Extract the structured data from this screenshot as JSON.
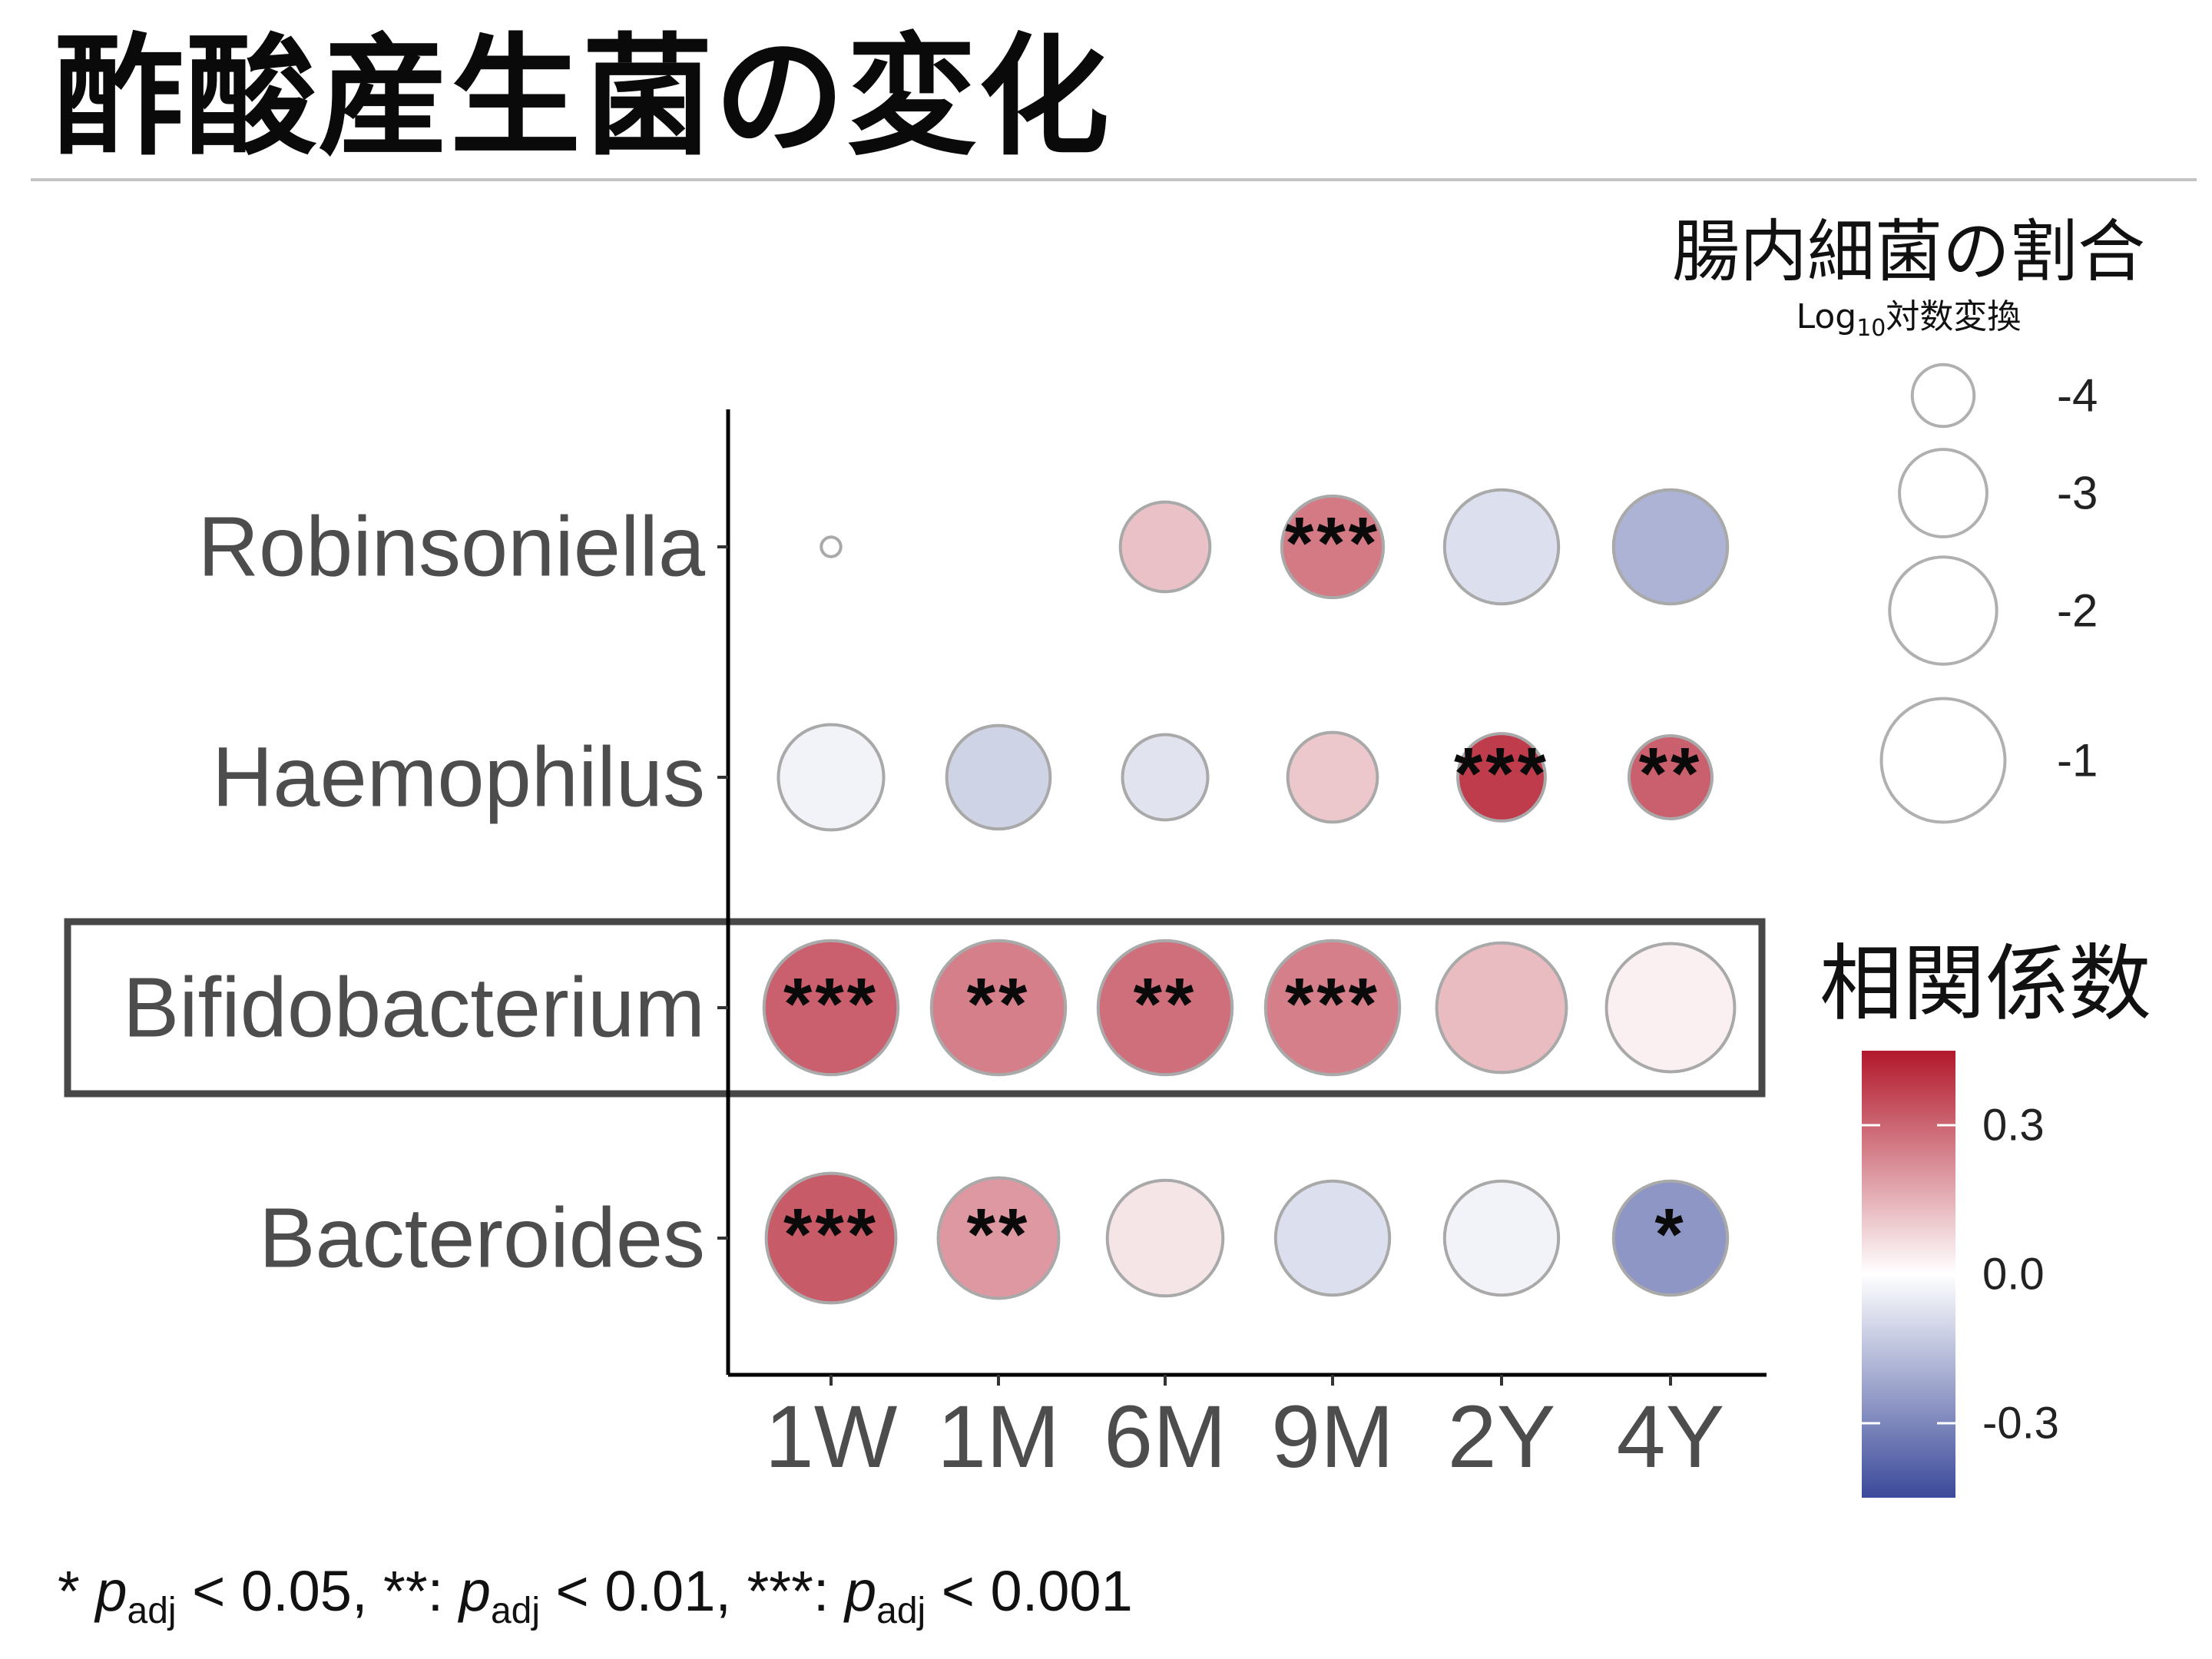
{
  "title": "酢酸産生菌の変化",
  "chart_data": {
    "type": "bubble",
    "categories": [
      "1W",
      "1M",
      "6M",
      "9M",
      "2Y",
      "4Y"
    ],
    "series": [
      {
        "name": "Robinsoniella",
        "size": [
          -4.9,
          null,
          -2.9,
          -2.3,
          -1.6,
          -1.6
        ],
        "corr": [
          0.0,
          null,
          0.12,
          0.26,
          -0.08,
          -0.19
        ],
        "sig": [
          "",
          "",
          "",
          "***",
          "",
          ""
        ]
      },
      {
        "name": "Haemophilus",
        "size": [
          -2.1,
          -2.2,
          -3.1,
          -2.9,
          -3.0,
          -3.2
        ],
        "corr": [
          -0.03,
          -0.11,
          -0.07,
          0.11,
          0.38,
          0.31
        ],
        "sig": [
          "",
          "",
          "",
          "",
          "***",
          "**"
        ]
      },
      {
        "name": "Bifidobacterium",
        "size": [
          -0.3,
          -0.3,
          -0.3,
          -0.3,
          -0.6,
          -0.7
        ],
        "corr": [
          0.31,
          0.25,
          0.28,
          0.25,
          0.13,
          0.03
        ],
        "sig": [
          "***",
          "**",
          "**",
          "***",
          "",
          ""
        ],
        "highlighted": true
      },
      {
        "name": "Bacteroides",
        "size": [
          -0.6,
          -1.2,
          -1.5,
          -1.6,
          -1.6,
          -1.6
        ],
        "corr": [
          0.32,
          0.2,
          0.05,
          -0.08,
          -0.03,
          -0.26
        ],
        "sig": [
          "***",
          "**",
          "",
          "",
          "",
          "*"
        ]
      }
    ],
    "size_legend": {
      "title": "腸内細菌の割合",
      "subtitle_prefix": "Log",
      "subtitle_sub": "10",
      "subtitle_suffix": "対数変換",
      "breaks": [
        -4,
        -3,
        -2,
        -1
      ],
      "labels": [
        "-4",
        "-3",
        "-2",
        "-1"
      ]
    },
    "color_legend": {
      "title": "相関係数",
      "range": [
        -0.45,
        0.45
      ],
      "ticks": [
        0.3,
        0.0,
        -0.3
      ],
      "tick_labels": [
        "0.3",
        "0.0",
        "-0.3"
      ],
      "colors": {
        "low": "#3b4a9a",
        "mid": "#ffffff",
        "high": "#b2182b"
      }
    }
  },
  "footnote": {
    "s1": "* ",
    "p": "p",
    "sub": "adj",
    "t1": " < 0.05, **: ",
    "t2": " < 0.01, ***: ",
    "t3": " < 0.001"
  }
}
